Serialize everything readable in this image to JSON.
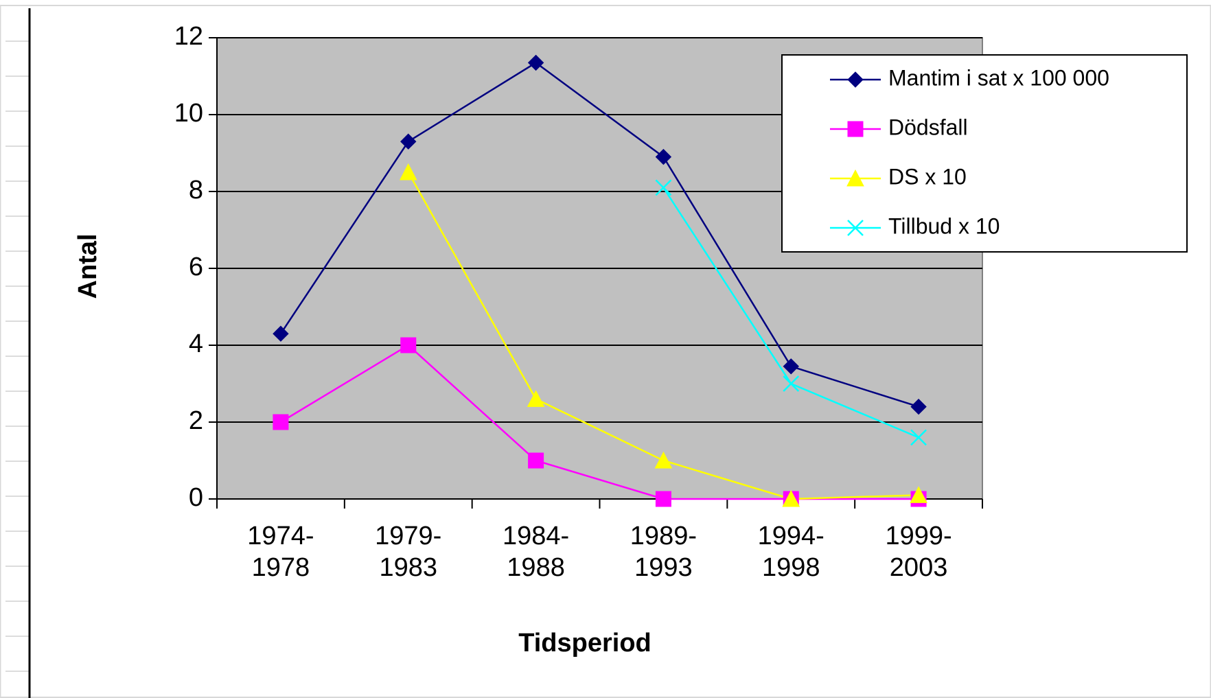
{
  "chart_data": {
    "type": "line",
    "xlabel": "Tidsperiod",
    "ylabel": "Antal",
    "categories": [
      "1974-1978",
      "1979-1983",
      "1984-1988",
      "1989-1993",
      "1994-1998",
      "1999-2003"
    ],
    "series": [
      {
        "name": "Mantim i sat x 100 000",
        "color": "#000080",
        "marker": "diamond",
        "values": [
          4.3,
          9.3,
          11.35,
          8.9,
          3.45,
          2.4
        ]
      },
      {
        "name": "Dödsfall",
        "color": "#ff00ff",
        "marker": "square",
        "values": [
          2,
          4,
          1,
          0,
          0,
          0
        ]
      },
      {
        "name": "DS x 10",
        "color": "#ffff00",
        "marker": "triangle",
        "values": [
          null,
          8.5,
          2.6,
          1.0,
          0,
          0.1
        ]
      },
      {
        "name": "Tillbud x 10",
        "color": "#00ffff",
        "marker": "x",
        "values": [
          null,
          null,
          null,
          8.1,
          3.0,
          1.6
        ]
      }
    ],
    "ylim": [
      0,
      12
    ],
    "yticks": [
      0,
      2,
      4,
      6,
      8,
      10,
      12
    ],
    "grid": true,
    "legend": "upper right"
  }
}
